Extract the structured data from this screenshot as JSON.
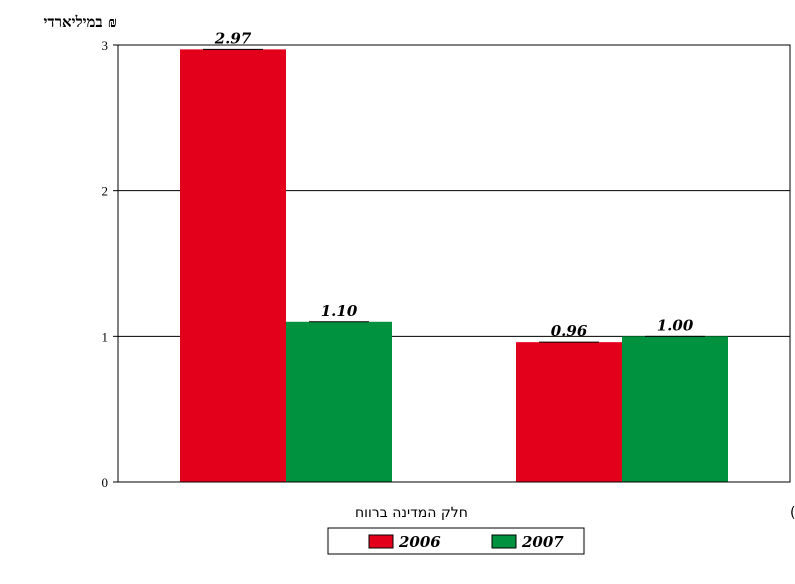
{
  "chart_data": {
    "type": "bar",
    "unit_label": "במיליארדי ₪",
    "categories": [
      "חלק המדינה ברווח",
      "חלק המדינה ברווח (בנטרול חברת בז\"ן)"
    ],
    "series": [
      {
        "name": "2006",
        "values": [
          2.97,
          0.96
        ],
        "labels": [
          "2.97",
          "0.96"
        ],
        "color": "#e3001b"
      },
      {
        "name": "2007",
        "values": [
          1.1,
          1.0
        ],
        "labels": [
          "1.10",
          "1.00"
        ],
        "color": "#00923f"
      }
    ],
    "y_ticks": [
      "0",
      "1",
      "2",
      "3"
    ],
    "ylim": [
      0,
      3
    ],
    "grid": true,
    "legend_position": "bottom"
  }
}
